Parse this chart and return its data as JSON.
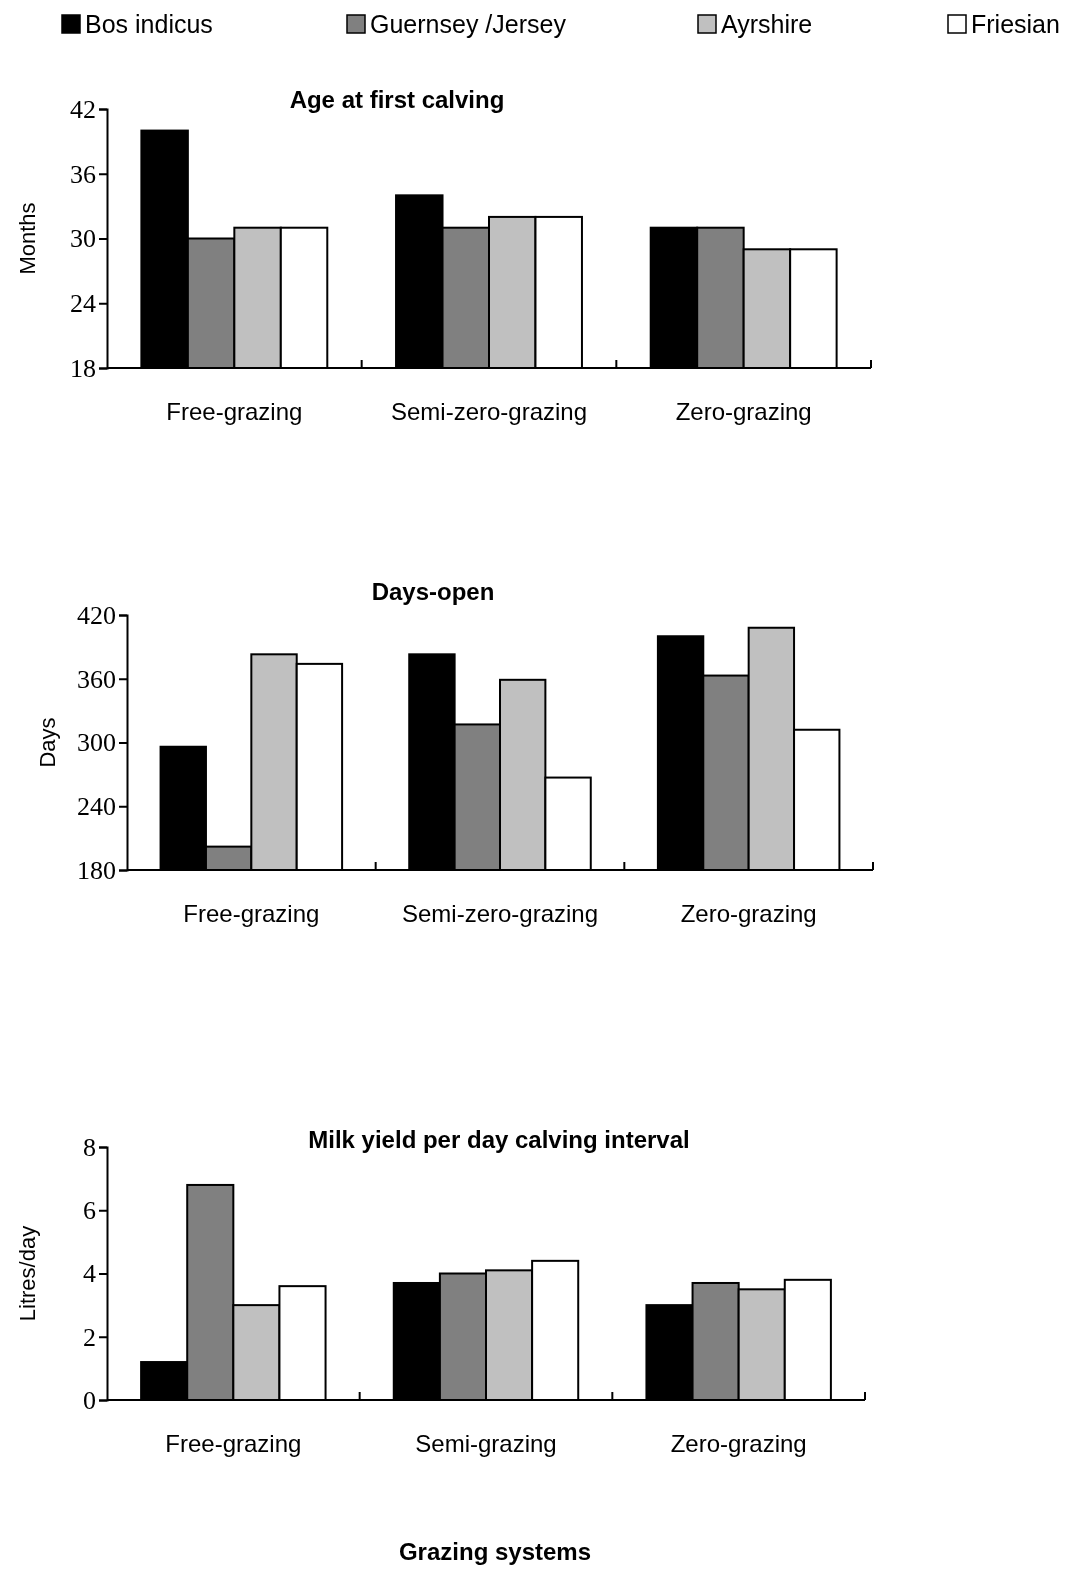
{
  "chart_data": [
    {
      "type": "bar",
      "title": "Age at first calving",
      "ylabel": "Months",
      "categories": [
        "Free-grazing",
        "Semi-zero-grazing",
        "Zero-grazing"
      ],
      "legend": "top",
      "series": [
        {
          "name": "Bos indicus",
          "color": "#000000",
          "values": [
            40,
            34,
            31
          ]
        },
        {
          "name": "Guernsey /Jersey",
          "color": "#808080",
          "values": [
            30,
            31,
            31
          ]
        },
        {
          "name": "Ayrshire",
          "color": "#c0c0c0",
          "values": [
            31,
            32,
            29
          ]
        },
        {
          "name": "Friesian",
          "color": "#ffffff",
          "values": [
            31,
            32,
            29
          ]
        }
      ],
      "ylim": [
        18,
        42
      ],
      "yticks": [
        18,
        24,
        30,
        36,
        42
      ]
    },
    {
      "type": "bar",
      "title": "Days-open",
      "ylabel": "Days",
      "categories": [
        "Free-grazing",
        "Semi-zero-grazing",
        "Zero-grazing"
      ],
      "series": [
        {
          "color": "#000000",
          "values": [
            296,
            383,
            400
          ]
        },
        {
          "color": "#808080",
          "values": [
            202,
            317,
            363
          ]
        },
        {
          "color": "#c0c0c0",
          "values": [
            383,
            359,
            408
          ]
        },
        {
          "color": "#ffffff",
          "values": [
            374,
            267,
            312
          ]
        }
      ],
      "ylim": [
        180,
        420
      ],
      "yticks": [
        180,
        240,
        300,
        360,
        420
      ]
    },
    {
      "type": "bar",
      "title": "Milk yield per day calving interval",
      "ylabel": "Litres/day",
      "xlabel": "Grazing systems",
      "categories": [
        "Free-grazing",
        "Semi-grazing",
        "Zero-grazing"
      ],
      "series": [
        {
          "color": "#000000",
          "values": [
            1.2,
            3.7,
            3.0
          ]
        },
        {
          "color": "#808080",
          "values": [
            6.8,
            4.0,
            3.7
          ]
        },
        {
          "color": "#c0c0c0",
          "values": [
            3.0,
            4.1,
            3.5
          ]
        },
        {
          "color": "#ffffff",
          "values": [
            3.6,
            4.4,
            3.8
          ]
        }
      ],
      "ylim": [
        0,
        8
      ],
      "yticks": [
        0,
        2,
        4,
        6,
        8
      ]
    }
  ]
}
